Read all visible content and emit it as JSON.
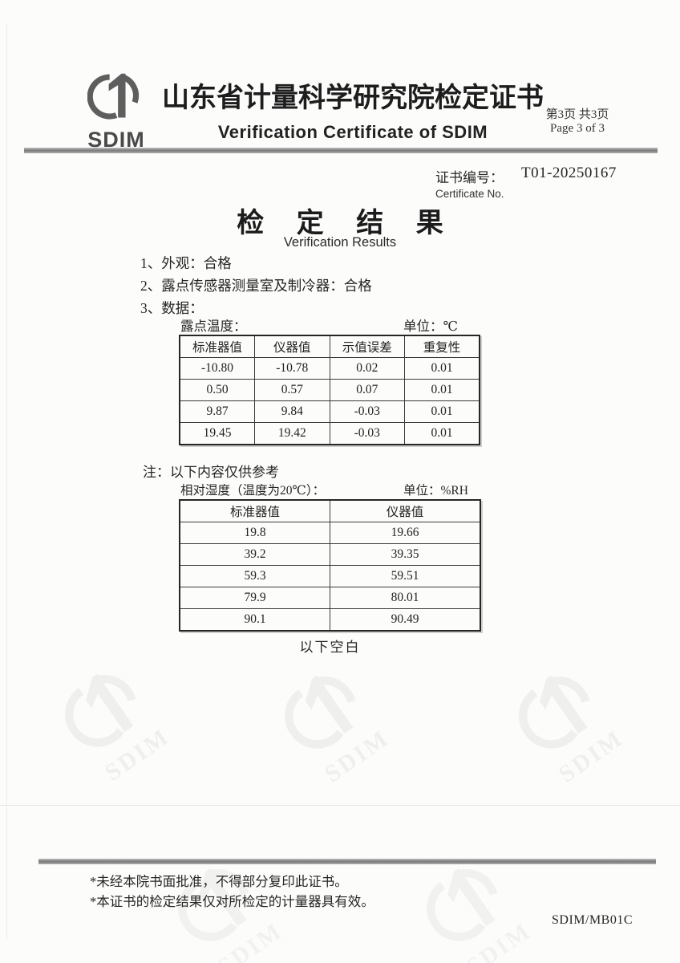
{
  "header": {
    "logo_text": "SDIM",
    "title_zh": "山东省计量科学研究院检定证书",
    "title_en": "Verification Certificate of SDIM",
    "page_number_zh": "第3页 共3页",
    "page_number_en": "Page 3 of 3"
  },
  "certificate": {
    "number_label_zh": "证书编号：",
    "number_value": "T01-20250167",
    "number_label_en": "Certificate No."
  },
  "results": {
    "title_zh": "检 定 结 果",
    "title_en": "Verification Results",
    "items": [
      "1、外观：合格",
      "2、露点传感器测量室及制冷器：合格",
      "3、数据："
    ],
    "note": "注：以下内容仅供参考",
    "end_marker": "以下空白"
  },
  "dew_point_table": {
    "caption": "露点温度：",
    "unit": "单位：℃",
    "headers": [
      "标准器值",
      "仪器值",
      "示值误差",
      "重复性"
    ],
    "rows": [
      [
        "-10.80",
        "-10.78",
        "0.02",
        "0.01"
      ],
      [
        "0.50",
        "0.57",
        "0.07",
        "0.01"
      ],
      [
        "9.87",
        "9.84",
        "-0.03",
        "0.01"
      ],
      [
        "19.45",
        "19.42",
        "-0.03",
        "0.01"
      ]
    ]
  },
  "humidity_table": {
    "caption": "相对湿度（温度为20℃）：",
    "unit": "单位：%RH",
    "headers": [
      "标准器值",
      "仪器值"
    ],
    "rows": [
      [
        "19.8",
        "19.66"
      ],
      [
        "39.2",
        "39.35"
      ],
      [
        "59.3",
        "59.51"
      ],
      [
        "79.9",
        "80.01"
      ],
      [
        "90.1",
        "90.49"
      ]
    ]
  },
  "footer": {
    "notes": [
      "*未经本院书面批准，不得部分复印此证书。",
      "*本证书的检定结果仅对所检定的计量器具有效。"
    ],
    "form_code": "SDIM/MB01C"
  },
  "watermark_text": "SDIM",
  "colors": {
    "rule_gray": "#8a8a8a",
    "logo_gray": "#5e5e5e",
    "text": "#262626"
  }
}
